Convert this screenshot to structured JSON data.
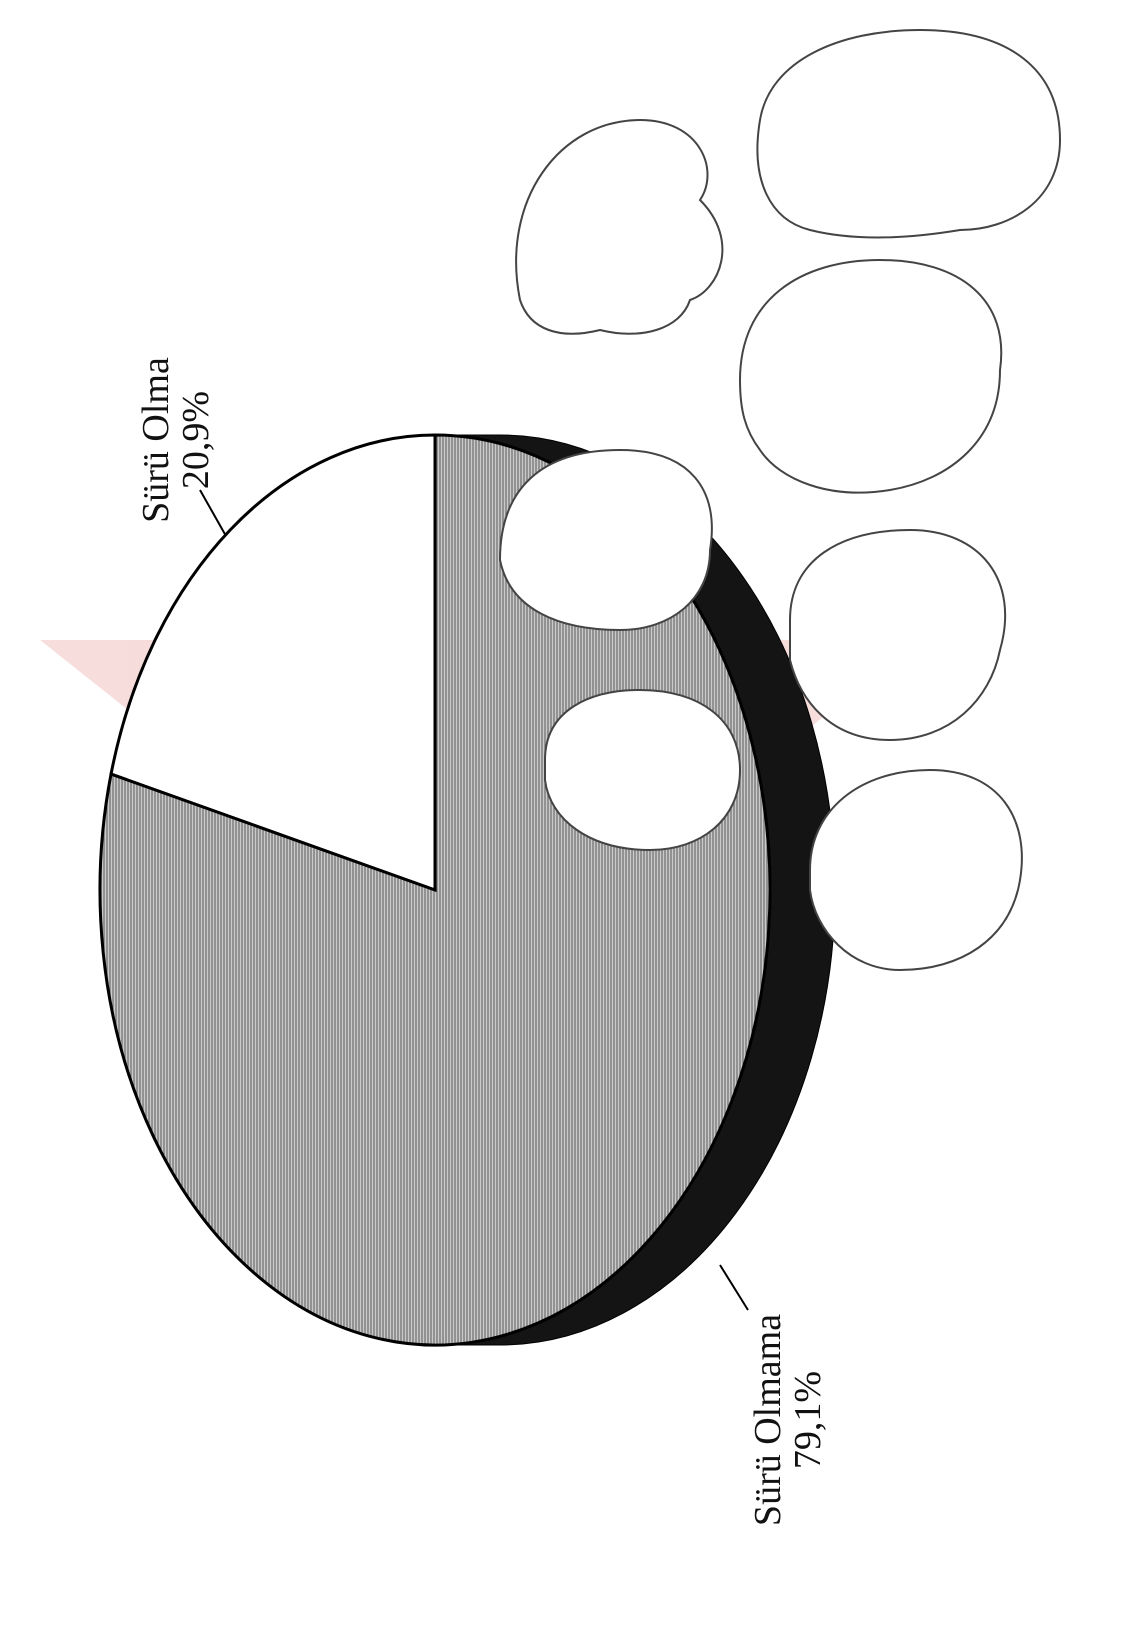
{
  "chart_data": {
    "type": "pie",
    "style": "3d-tilted, rotated page, hatched grey fill, decorative silhouettes",
    "slices": [
      {
        "name": "Sürü Olma",
        "value": 20.9,
        "value_label": "20,9%",
        "fill": "#ffffff"
      },
      {
        "name": "Sürü Olmama",
        "value": 79.1,
        "value_label": "79,1%",
        "fill": "#9a9a9a"
      }
    ]
  },
  "colors": {
    "outline": "#000000",
    "shade": "#141414",
    "watermark": "#f2c4c4",
    "silhouette_stroke": "#444444"
  }
}
